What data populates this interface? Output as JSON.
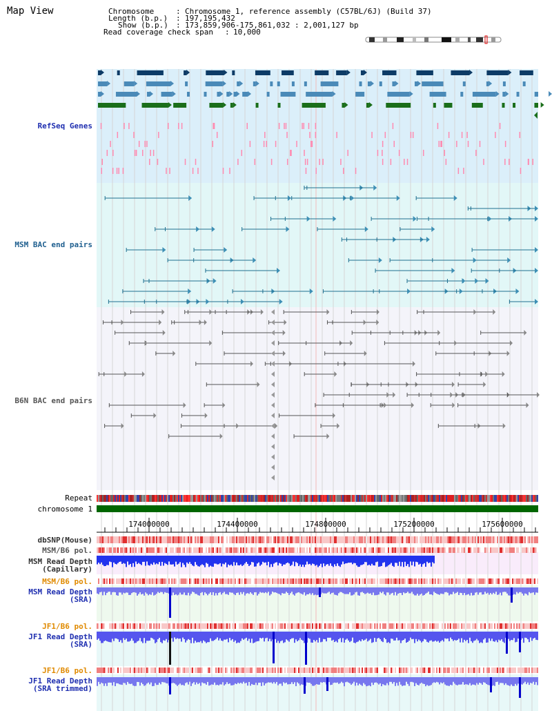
{
  "page": {
    "title": "Map View"
  },
  "header": {
    "chromosome_label": "Chromosome",
    "chromosome_value": "Chromosome 1, reference assembly (C57BL/6J) (Build 37)",
    "length_label": "Length (b.p.)",
    "length_value": "197,195,432",
    "show_label": "Show (b.p.)",
    "show_value": "173,859,906-175,861,032 : 2,001,127 bp",
    "coverage_label": "Read coverage check span",
    "coverage_value": "10,000"
  },
  "tracks": {
    "refseq": {
      "label": "RefSeq Genes",
      "color": "#1f2fb0"
    },
    "msm_bac": {
      "label": "MSM BAC end pairs",
      "color": "#1f5f8f"
    },
    "b6n_bac": {
      "label": "B6N BAC end pairs",
      "color": "#555555"
    },
    "repeat": {
      "label": "Repeat"
    },
    "chromosome": {
      "label": "chromosome 1"
    },
    "dbsnp": {
      "label": "dbSNP(Mouse)",
      "color": "#333333"
    },
    "msm_b6_pol_1": {
      "label": "MSM/B6 pol.",
      "color": "#555555"
    },
    "msm_depth_cap": {
      "label_line1": "MSM Read Depth",
      "label_line2": "(Capillary)",
      "color": "#333333"
    },
    "msm_b6_pol_2": {
      "label": "MSM/B6 pol.",
      "color": "#e08a00"
    },
    "msm_depth_sra": {
      "label_line1": "MSM Read Depth",
      "label_line2": "(SRA)",
      "color": "#1f2fb0"
    },
    "jf1_b6_pol_1": {
      "label": "JF1/B6 pol.",
      "color": "#e08a00"
    },
    "jf1_depth_sra": {
      "label_line1": "JF1 Read Depth",
      "label_line2": "(SRA)",
      "color": "#1f2fb0"
    },
    "jf1_b6_pol_2": {
      "label": "JF1/B6 pol.",
      "color": "#e08a00"
    },
    "jf1_depth_trim": {
      "label_line1": "JF1 Read Depth",
      "label_line2": "(SRA trimmed)",
      "color": "#1f2fb0"
    }
  },
  "axis": {
    "ticks": [
      "174000000",
      "174400000",
      "174800000",
      "175200000",
      "175600000"
    ]
  },
  "colors": {
    "refseq_bg": "#dbeffa",
    "bac_bg": "#e2f7f7",
    "b6n_bg": "#f4f4fa",
    "chromosome_bar": "#006600",
    "gene_navy": "#0d3b66",
    "gene_steel": "#4a8ab8",
    "gene_green": "#1a6e1a",
    "pink": "#ff8ab0",
    "depth_blue": "#3333ee"
  }
}
